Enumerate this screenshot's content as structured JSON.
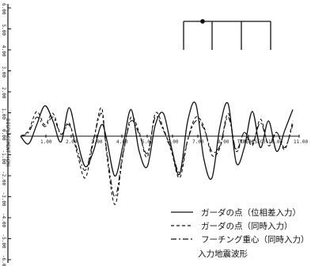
{
  "chart_data": {
    "type": "line",
    "title": "",
    "xlabel": "TIME (SEC)",
    "ylabel": "DISPLACEMENT (CM)",
    "xlim": [
      0,
      11
    ],
    "ylim": [
      -6,
      6
    ],
    "x_ticks": [
      "1.00",
      "2.00",
      "3.00",
      "4.00",
      "5.00",
      "6.00",
      "7.00",
      "8.00",
      "9.00",
      "10.00",
      "11.00"
    ],
    "y_ticks": [
      "6.00",
      "5.00",
      "4.00",
      "3.00",
      "2.00",
      "1.00",
      "0.00",
      "-1.00",
      "-2.00",
      "-3.00",
      "-4.00",
      "-5.00",
      "-6.00"
    ],
    "grid": false,
    "legend_position": "bottom-right",
    "series": [
      {
        "name": "ガーダの点（位相差入力）",
        "style": "solid",
        "x": [
          0,
          0.3,
          0.6,
          0.9,
          1.2,
          1.5,
          1.8,
          2.1,
          2.4,
          2.7,
          3.0,
          3.2,
          3.5,
          3.8,
          4.1,
          4.4,
          4.7,
          5.0,
          5.3,
          5.6,
          5.9,
          6.2,
          6.5,
          6.8,
          7.1,
          7.4,
          7.7,
          8.0,
          8.3,
          8.6,
          8.9,
          9.2,
          9.5,
          9.8,
          10.1
        ],
        "y": [
          0,
          -0.4,
          0.6,
          1.6,
          0.8,
          -0.3,
          1.5,
          -0.2,
          -1.6,
          -0.8,
          0.6,
          -0.2,
          -2.1,
          -0.5,
          1.4,
          -0.8,
          -1.6,
          0.6,
          1.2,
          -0.6,
          -2.0,
          0.8,
          1.7,
          -1.2,
          -2.2,
          0.5,
          1.7,
          -1.4,
          -0.6,
          1.3,
          -0.6,
          0.8,
          -0.8,
          0.3,
          1.4
        ]
      },
      {
        "name": "ガーダの点（同時入力）",
        "style": "dashed",
        "x": [
          0,
          0.3,
          0.6,
          0.9,
          1.2,
          1.5,
          1.8,
          2.1,
          2.4,
          2.7,
          3.0,
          3.2,
          3.5,
          3.8,
          4.1,
          4.4,
          4.7,
          5.0,
          5.3,
          5.6,
          5.9,
          6.2,
          6.5,
          6.8,
          7.1,
          7.4,
          7.7,
          8.0,
          8.3,
          8.6,
          8.9,
          9.2,
          9.5,
          9.8,
          10.1
        ],
        "y": [
          0,
          0.3,
          1.3,
          0.6,
          1.2,
          0.1,
          0.7,
          -0.9,
          -2.2,
          -0.3,
          1.5,
          -1.0,
          -3.6,
          -1.0,
          1.0,
          0.2,
          -1.1,
          1.2,
          0.4,
          -0.8,
          -2.2,
          -0.2,
          1.0,
          0.5,
          -1.0,
          -0.6,
          1.2,
          -0.8,
          0.2,
          -0.5,
          0.9,
          -0.5,
          0.2,
          -0.7,
          0.8
        ]
      },
      {
        "name": "フーチング重心（同時入力）",
        "style": "dashdot",
        "x": [
          0,
          0.3,
          0.6,
          0.9,
          1.2,
          1.5,
          1.8,
          2.1,
          2.4,
          2.7,
          3.0,
          3.2,
          3.5,
          3.8,
          4.1,
          4.4,
          4.7,
          5.0,
          5.3,
          5.6,
          5.9,
          6.2,
          6.5,
          6.8,
          7.1,
          7.4,
          7.7,
          8.0,
          8.3,
          8.6,
          8.9,
          9.2,
          9.5,
          9.8,
          10.1
        ],
        "y": [
          0,
          0.2,
          1.0,
          0.5,
          1.0,
          0.1,
          0.6,
          -0.7,
          -1.8,
          -0.2,
          1.2,
          -0.8,
          -3.2,
          -0.9,
          0.8,
          0.1,
          -0.9,
          1.0,
          0.3,
          -0.7,
          -1.9,
          -0.2,
          0.8,
          0.4,
          -0.8,
          -0.5,
          1.0,
          -0.7,
          0.2,
          -0.4,
          0.7,
          -0.4,
          0.2,
          -0.6,
          0.6
        ]
      }
    ],
    "legend_caption": "入力地震波形",
    "inset": "structure-diagram"
  }
}
